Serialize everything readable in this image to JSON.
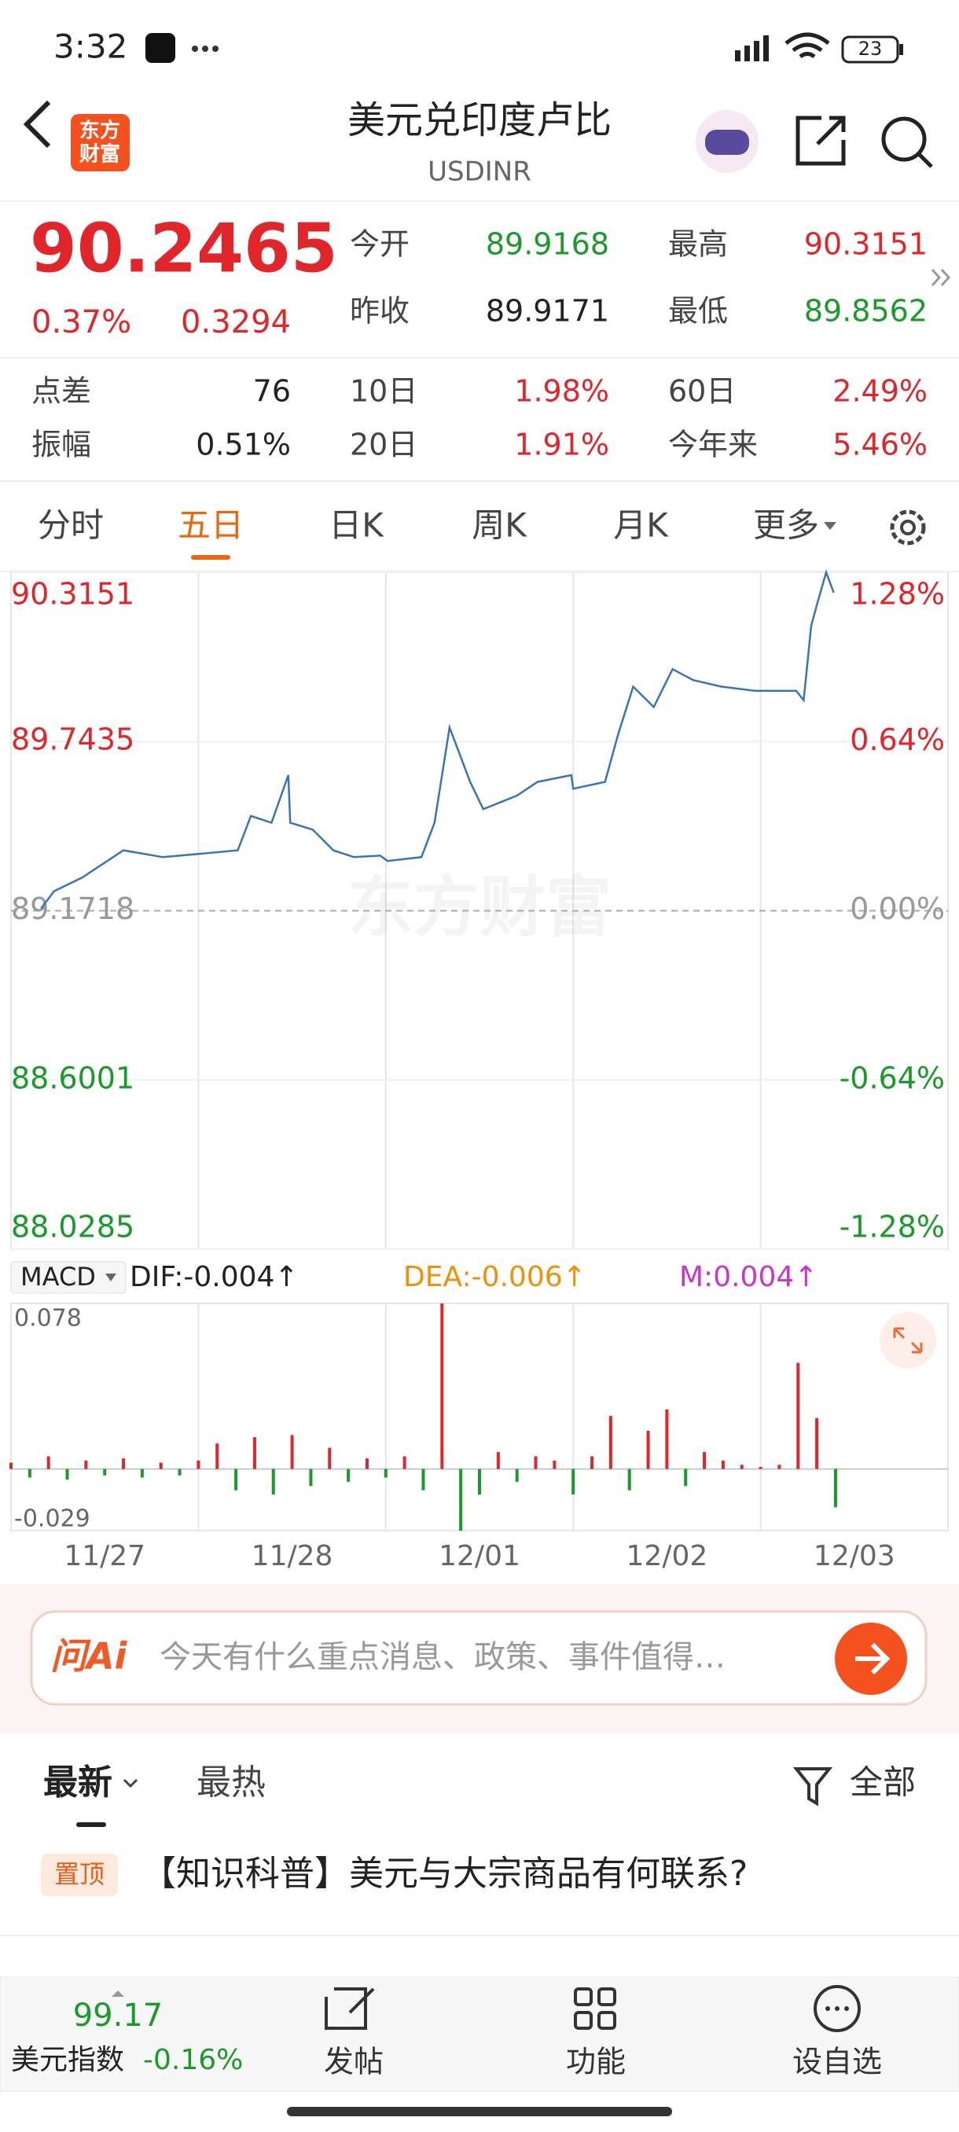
{
  "status_bar": {
    "time": "3:32",
    "battery": "23"
  },
  "header": {
    "logo": [
      "东方",
      "财富"
    ],
    "title": "美元兑印度卢比",
    "subtitle": "USDINR"
  },
  "quote": {
    "price": "90.2465",
    "change_pct": "0.37%",
    "change": "0.3294",
    "color": "#e0262b",
    "fields": [
      [
        {
          "label": "今开",
          "value": "89.9168",
          "color": "#1a9a2a"
        },
        {
          "label": "最高",
          "value": "90.3151",
          "color": "#e0262b"
        }
      ],
      [
        {
          "label": "昨收",
          "value": "89.9171",
          "color": "#222222"
        },
        {
          "label": "最低",
          "value": "89.8562",
          "color": "#1a9a2a"
        }
      ]
    ]
  },
  "stats": [
    [
      {
        "label": "点差",
        "value": "76",
        "color": "#222222"
      },
      {
        "label": "10日",
        "value": "1.98%",
        "color": "#e0262b"
      },
      {
        "label": "60日",
        "value": "2.49%",
        "color": "#e0262b"
      }
    ],
    [
      {
        "label": "振幅",
        "value": "0.51%",
        "color": "#222222"
      },
      {
        "label": "20日",
        "value": "1.91%",
        "color": "#e0262b"
      },
      {
        "label": "今年来",
        "value": "5.46%",
        "color": "#e0262b"
      }
    ]
  ],
  "tabs": [
    "分时",
    "五日",
    "日K",
    "周K",
    "月K",
    "更多"
  ],
  "chart_data": [
    {
      "type": "line",
      "color": "#3b73b9",
      "watermark": "东方财富",
      "x": [
        0.16,
        0.23,
        0.38,
        0.6,
        0.81,
        0.99,
        1.21,
        1.28,
        1.39,
        1.48,
        1.49,
        1.61,
        1.72,
        1.83,
        1.97,
        2.01,
        2.19,
        2.26,
        2.34,
        2.45,
        2.52,
        2.7,
        2.81,
        2.99,
        3.0,
        3.17,
        3.24,
        3.32,
        3.43,
        3.53,
        3.64,
        3.79,
        3.97,
        4.19,
        4.23,
        4.27,
        4.3,
        4.35,
        4.39
      ],
      "values": [
        89.179,
        89.238,
        89.284,
        89.376,
        89.353,
        89.363,
        89.376,
        89.492,
        89.469,
        89.63,
        89.469,
        89.446,
        89.376,
        89.353,
        89.358,
        89.34,
        89.353,
        89.469,
        89.791,
        89.607,
        89.515,
        89.561,
        89.607,
        89.63,
        89.584,
        89.607,
        89.768,
        89.929,
        89.86,
        89.988,
        89.951,
        89.929,
        89.915,
        89.915,
        89.883,
        90.135,
        90.204,
        90.3151,
        90.2465
      ],
      "xlim": [
        0,
        5
      ],
      "xticks": [
        {
          "value": 0.5,
          "label": "11/27"
        },
        {
          "value": 1.5,
          "label": "11/28"
        },
        {
          "value": 2.5,
          "label": "12/01"
        },
        {
          "value": 3.5,
          "label": "12/02"
        },
        {
          "value": 4.5,
          "label": "12/03"
        }
      ],
      "ylim": [
        88.0285,
        90.3151
      ],
      "yticks": [
        90.3151,
        89.7435,
        89.1718,
        88.6001,
        88.0285
      ],
      "y2lim": [
        -1.28,
        1.28
      ],
      "y2ticks": [
        {
          "value": 1.28,
          "label": "1.28%"
        },
        {
          "value": 0.64,
          "label": "0.64%"
        },
        {
          "value": 0,
          "label": "0.00%"
        },
        {
          "value": -0.64,
          "label": "-0.64%"
        },
        {
          "value": -1.28,
          "label": "-1.28%"
        }
      ],
      "up_color": "#e0262b",
      "down_color": "#1a9a2a",
      "grid": true
    },
    {
      "type": "bar",
      "indicator": "MACD",
      "legend": [
        {
          "text": "DIF:-0.004↑",
          "color": "#222222"
        },
        {
          "text": "DEA:-0.006↑",
          "color": "#f0900a"
        },
        {
          "text": "M:0.004↑",
          "color": "#cc33cc"
        }
      ],
      "x": [
        0,
        0.1,
        0.2,
        0.3,
        0.4,
        0.5,
        0.6,
        0.7,
        0.8,
        0.9,
        1.0,
        1.1,
        1.2,
        1.3,
        1.4,
        1.5,
        1.6,
        1.7,
        1.8,
        1.9,
        2.0,
        2.1,
        2.2,
        2.3,
        2.4,
        2.5,
        2.6,
        2.7,
        2.8,
        2.9,
        3.0,
        3.1,
        3.2,
        3.3,
        3.4,
        3.5,
        3.6,
        3.7,
        3.8,
        3.9,
        4.0,
        4.1,
        4.2,
        4.3,
        4.4
      ],
      "values": [
        0.003,
        -0.004,
        0.006,
        -0.005,
        0.004,
        -0.003,
        0.005,
        -0.004,
        0.003,
        -0.003,
        0.004,
        0.012,
        -0.01,
        0.015,
        -0.012,
        0.016,
        -0.008,
        0.01,
        -0.006,
        0.005,
        -0.004,
        0.006,
        -0.01,
        0.078,
        -0.029,
        -0.012,
        0.008,
        -0.006,
        0.006,
        0.004,
        -0.012,
        0.006,
        0.025,
        -0.01,
        0.018,
        0.028,
        -0.008,
        0.008,
        0.004,
        0.002,
        0.001,
        0.002,
        0.05,
        0.024,
        -0.018
      ],
      "xlim": [
        0,
        5
      ],
      "ylim": [
        -0.029,
        0.078
      ],
      "yticks": [
        0.078,
        -0.029
      ],
      "up_color": "#e0262b",
      "down_color": "#1a9a2a"
    }
  ],
  "ai_box": {
    "brand": "问Ai",
    "placeholder": "今天有什么重点消息、政策、事件值得…"
  },
  "feed": {
    "tabs": [
      "最新",
      "最热"
    ],
    "filter": "全部",
    "items": [
      {
        "tag": "置顶",
        "title": "【知识科普】美元与大宗商品有何联系?"
      }
    ]
  },
  "bottom_bar": {
    "index_value": "99.17",
    "index_name": "美元指数",
    "index_change": "-0.16%",
    "actions": [
      "发帖",
      "功能",
      "设自选"
    ]
  }
}
